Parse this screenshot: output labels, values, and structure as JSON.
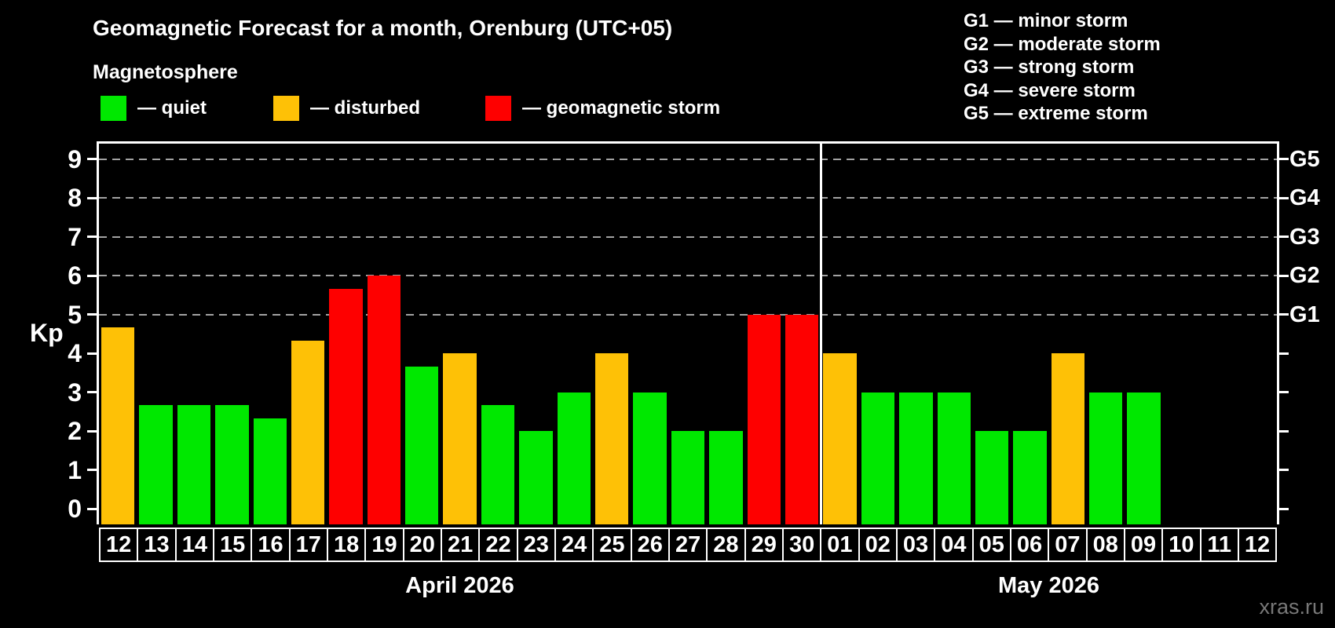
{
  "title": "Geomagnetic Forecast for a month, Orenburg (UTC+05)",
  "subtitle": "Magnetosphere",
  "legend": {
    "items": [
      {
        "key": "quiet",
        "label": "— quiet",
        "color": "#00e800"
      },
      {
        "key": "disturbed",
        "label": "— disturbed",
        "color": "#fec106"
      },
      {
        "key": "storm",
        "label": "— geomagnetic storm",
        "color": "#fe0000"
      }
    ]
  },
  "g_scale_legend": {
    "lines": [
      "G1 — minor storm",
      "G2 — moderate storm",
      "G3 — strong storm",
      "G4 — severe storm",
      "G5 — extreme storm"
    ]
  },
  "kp_axis_label": "Kp",
  "watermark": "xras.ru",
  "chart_data": {
    "type": "bar",
    "title": "Geomagnetic Forecast for a month, Orenburg (UTC+05)",
    "ylabel": "Kp",
    "ylim": [
      -0.4,
      9.4
    ],
    "yticks": [
      0,
      1,
      2,
      3,
      4,
      5,
      6,
      7,
      8,
      9
    ],
    "gridlines": [
      5,
      6,
      7,
      8,
      9
    ],
    "grid_color": "#a2a2a2",
    "right_axis": [
      {
        "label": "G1",
        "kp": 5
      },
      {
        "label": "G2",
        "kp": 6
      },
      {
        "label": "G3",
        "kp": 7
      },
      {
        "label": "G4",
        "kp": 8
      },
      {
        "label": "G5",
        "kp": 9
      }
    ],
    "colors": {
      "quiet": "#00e800",
      "disturbed": "#fec106",
      "storm": "#fe0000"
    },
    "months": [
      {
        "label": "April 2026",
        "days": [
          {
            "day": "12",
            "kp": 4.67,
            "level": "disturbed"
          },
          {
            "day": "13",
            "kp": 2.67,
            "level": "quiet"
          },
          {
            "day": "14",
            "kp": 2.67,
            "level": "quiet"
          },
          {
            "day": "15",
            "kp": 2.67,
            "level": "quiet"
          },
          {
            "day": "16",
            "kp": 2.33,
            "level": "quiet"
          },
          {
            "day": "17",
            "kp": 4.33,
            "level": "disturbed"
          },
          {
            "day": "18",
            "kp": 5.67,
            "level": "storm"
          },
          {
            "day": "19",
            "kp": 6.0,
            "level": "storm"
          },
          {
            "day": "20",
            "kp": 3.67,
            "level": "quiet"
          },
          {
            "day": "21",
            "kp": 4.0,
            "level": "disturbed"
          },
          {
            "day": "22",
            "kp": 2.67,
            "level": "quiet"
          },
          {
            "day": "23",
            "kp": 2.0,
            "level": "quiet"
          },
          {
            "day": "24",
            "kp": 3.0,
            "level": "quiet"
          },
          {
            "day": "25",
            "kp": 4.0,
            "level": "disturbed"
          },
          {
            "day": "26",
            "kp": 3.0,
            "level": "quiet"
          },
          {
            "day": "27",
            "kp": 2.0,
            "level": "quiet"
          },
          {
            "day": "28",
            "kp": 2.0,
            "level": "quiet"
          },
          {
            "day": "29",
            "kp": 5.0,
            "level": "storm"
          },
          {
            "day": "30",
            "kp": 5.0,
            "level": "storm"
          }
        ]
      },
      {
        "label": "May 2026",
        "days": [
          {
            "day": "01",
            "kp": 4.0,
            "level": "disturbed"
          },
          {
            "day": "02",
            "kp": 3.0,
            "level": "quiet"
          },
          {
            "day": "03",
            "kp": 3.0,
            "level": "quiet"
          },
          {
            "day": "04",
            "kp": 3.0,
            "level": "quiet"
          },
          {
            "day": "05",
            "kp": 2.0,
            "level": "quiet"
          },
          {
            "day": "06",
            "kp": 2.0,
            "level": "quiet"
          },
          {
            "day": "07",
            "kp": 4.0,
            "level": "disturbed"
          },
          {
            "day": "08",
            "kp": 3.0,
            "level": "quiet"
          },
          {
            "day": "09",
            "kp": 3.0,
            "level": "quiet"
          },
          {
            "day": "10",
            "kp": null,
            "level": null
          },
          {
            "day": "11",
            "kp": null,
            "level": null
          },
          {
            "day": "12",
            "kp": null,
            "level": null
          }
        ]
      }
    ]
  }
}
